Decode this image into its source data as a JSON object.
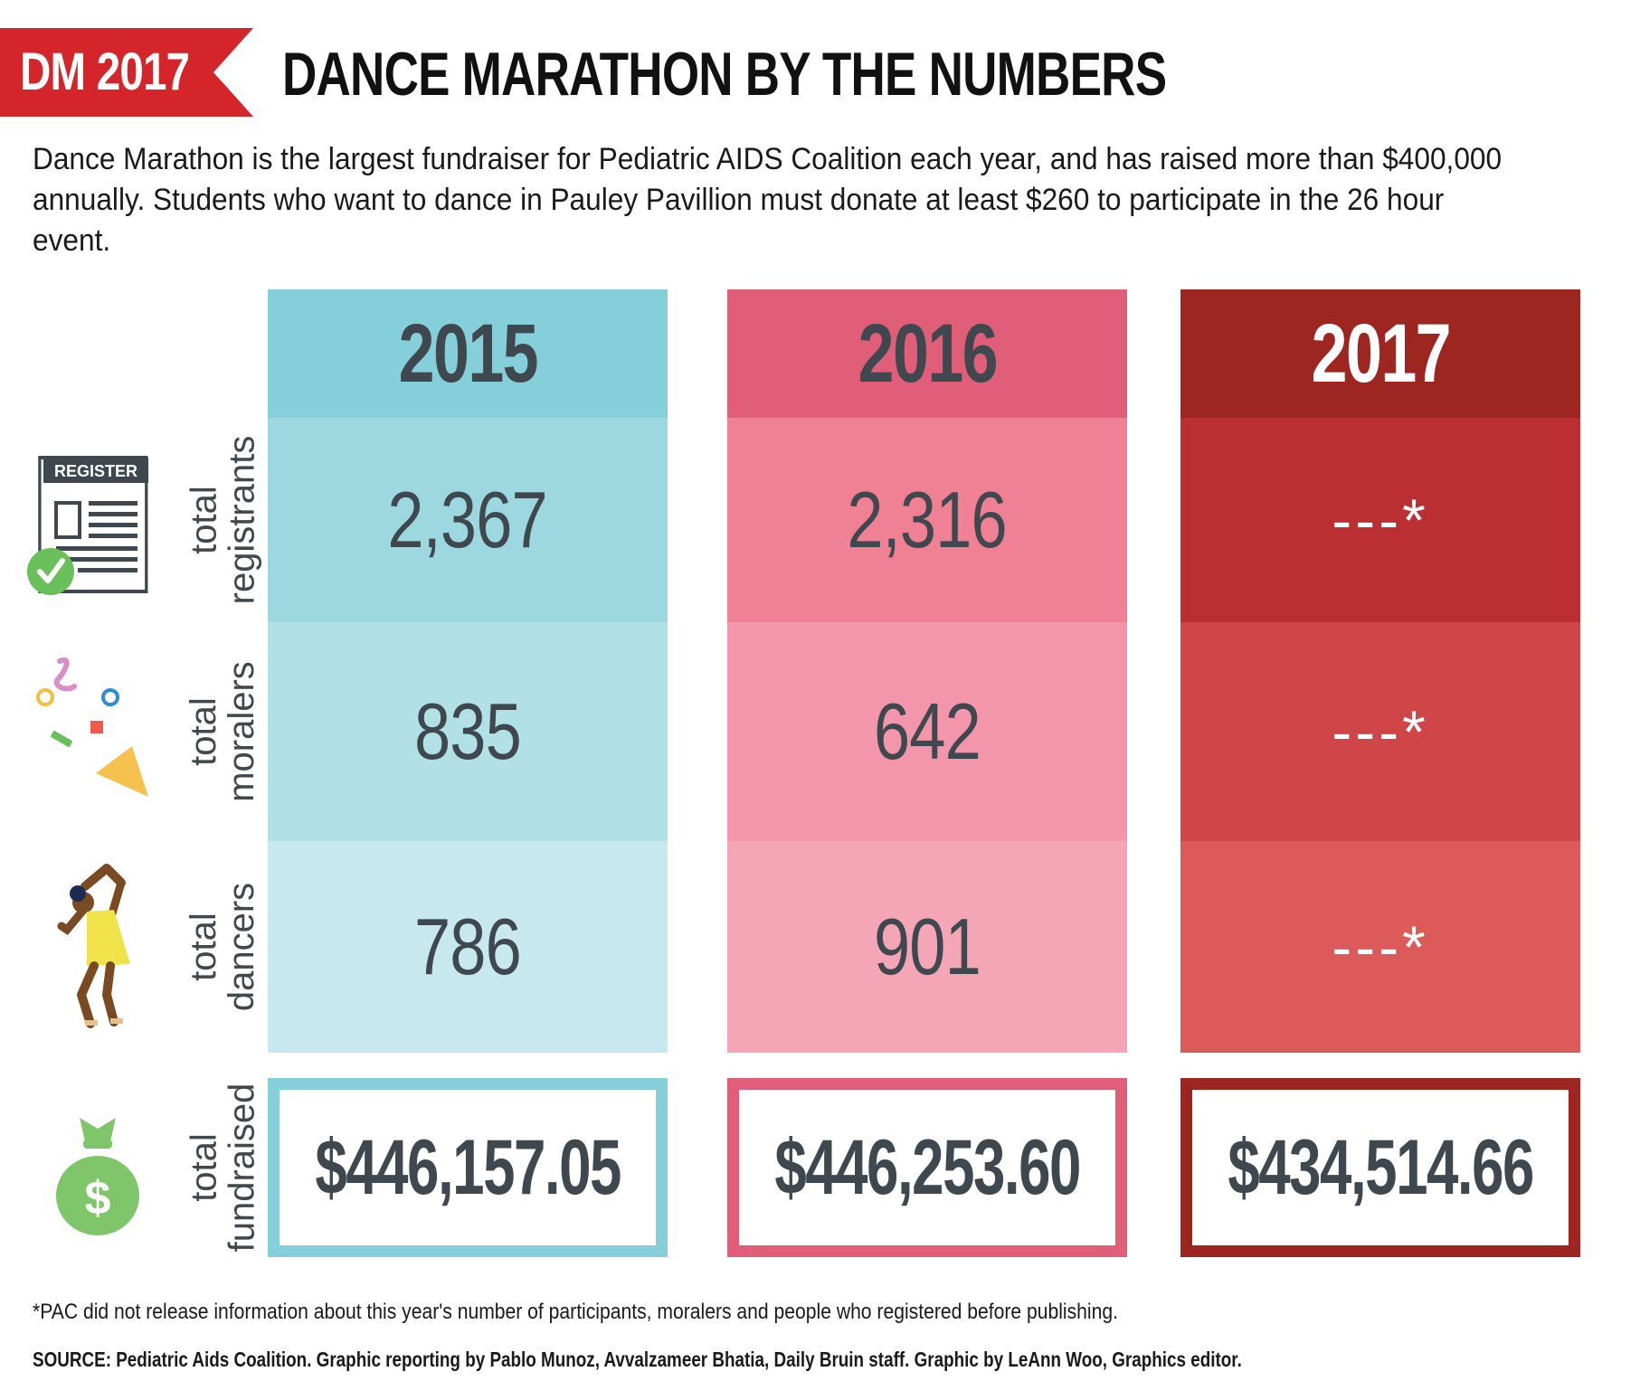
{
  "header": {
    "tag": "DM 2017",
    "title": "DANCE MARATHON BY THE NUMBERS"
  },
  "intro": "Dance Marathon is the largest fundraiser for Pediatric AIDS Coalition each year, and has raised more than $400,000 annually. Students who want to dance in Pauley Pavillion must donate at least $260 to participate in the 26 hour event.",
  "row_labels": {
    "registrants": "total registrants",
    "moralers": "total moralers",
    "dancers": "total dancers",
    "fundraised": "total fundraised"
  },
  "icons": {
    "registrants": {
      "name": "register-form-icon",
      "text": "REGISTER"
    },
    "moralers": {
      "name": "confetti-icon"
    },
    "dancers": {
      "name": "dancer-icon"
    },
    "fundraised": {
      "name": "money-bag-icon",
      "text": "$"
    }
  },
  "years": [
    {
      "year": "2015",
      "registrants": "2,367",
      "moralers": "835",
      "dancers": "786",
      "fundraised": "$446,157.05",
      "colors": {
        "header": "#84cfda",
        "r1": "#9dd8e1",
        "r2": "#b1e1e7",
        "r3": "#c6e8ee",
        "border": "#84cfda"
      }
    },
    {
      "year": "2016",
      "registrants": "2,316",
      "moralers": "642",
      "dancers": "901",
      "fundraised": "$446,253.60",
      "colors": {
        "header": "#e05e77",
        "r1": "#f08195",
        "r2": "#f496ab",
        "r3": "#f5a6b6",
        "border": "#e05e77"
      }
    },
    {
      "year": "2017",
      "registrants": "---*",
      "moralers": "---*",
      "dancers": "---*",
      "fundraised": "$434,514.66",
      "colors": {
        "header": "#9e2621",
        "r1": "#bb2f33",
        "r2": "#d04548",
        "r3": "#dc5a5a",
        "border": "#9e2621"
      }
    }
  ],
  "footnote": "*PAC did not release information about this year's number of participants, moralers and people who registered before publishing.",
  "source": "SOURCE: Pediatric Aids Coalition. Graphic reporting by Pablo Munoz, Avvalzameer Bhatia, Daily Bruin staff. Graphic by LeAnn Woo, Graphics editor.",
  "colors": {
    "tag": "#d3252a",
    "text": "#3e484e",
    "check": "#69c05b",
    "money_bag": "#7fc66b"
  }
}
